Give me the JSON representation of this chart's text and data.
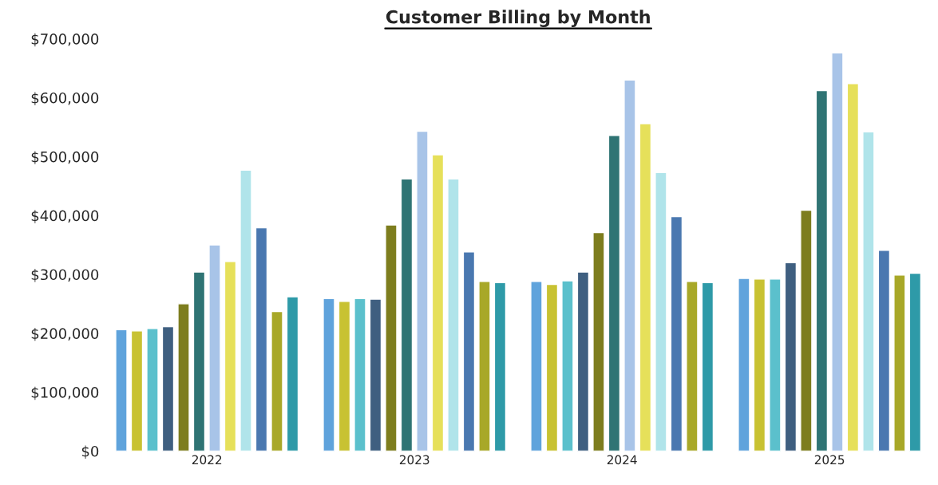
{
  "chart_data": {
    "type": "bar",
    "title": "Customer Billing by Month",
    "categories": [
      "2022",
      "2023",
      "2024",
      "2025"
    ],
    "series": [
      {
        "color": "#5fa3dc",
        "values": [
          206000,
          259000,
          288000,
          293000
        ]
      },
      {
        "color": "#c8c232",
        "values": [
          204000,
          254000,
          283000,
          292000
        ]
      },
      {
        "color": "#5bc0cc",
        "values": [
          208000,
          259000,
          289000,
          292000
        ]
      },
      {
        "color": "#3f5f80",
        "values": [
          211000,
          258000,
          304000,
          320000
        ]
      },
      {
        "color": "#7d7d1e",
        "values": [
          250000,
          384000,
          371000,
          409000
        ]
      },
      {
        "color": "#2f7474",
        "values": [
          304000,
          462000,
          536000,
          612000
        ]
      },
      {
        "color": "#a8c4e8",
        "values": [
          350000,
          543000,
          630000,
          676000
        ]
      },
      {
        "color": "#e6e05a",
        "values": [
          322000,
          503000,
          556000,
          624000
        ]
      },
      {
        "color": "#b0e4ea",
        "values": [
          477000,
          462000,
          473000,
          542000
        ]
      },
      {
        "color": "#4a78b0",
        "values": [
          379000,
          338000,
          398000,
          341000
        ]
      },
      {
        "color": "#a8a828",
        "values": [
          237000,
          288000,
          288000,
          299000
        ]
      },
      {
        "color": "#2e9aa8",
        "values": [
          262000,
          286000,
          286000,
          302000
        ]
      }
    ],
    "ylim": [
      0,
      700000
    ],
    "yticks": [
      {
        "value": 0,
        "label": "$0"
      },
      {
        "value": 100000,
        "label": "$100,000"
      },
      {
        "value": 200000,
        "label": "$200,000"
      },
      {
        "value": 300000,
        "label": "$300,000"
      },
      {
        "value": 400000,
        "label": "$400,000"
      },
      {
        "value": 500000,
        "label": "$500,000"
      },
      {
        "value": 600000,
        "label": "$600,000"
      },
      {
        "value": 700000,
        "label": "$700,000"
      }
    ],
    "grid": false
  }
}
